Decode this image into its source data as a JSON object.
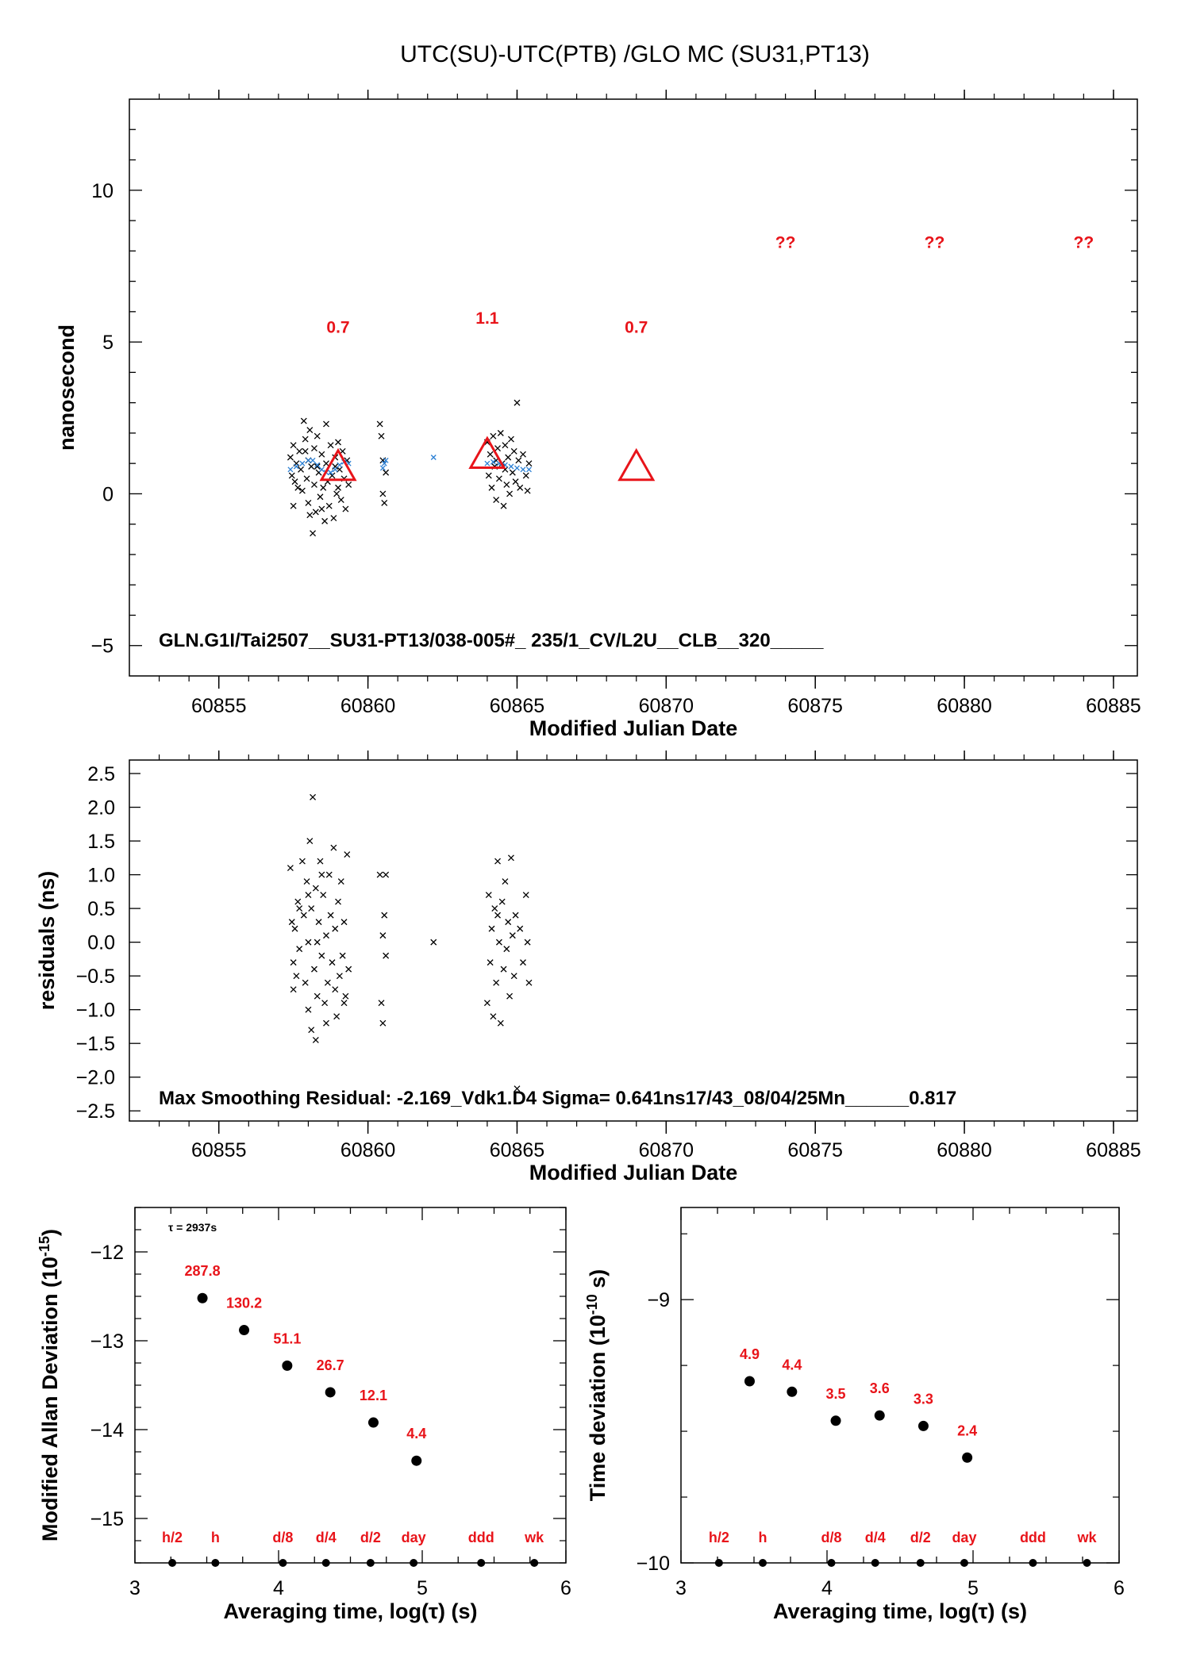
{
  "page": {
    "title": "UTC(SU)-UTC(PTB)  /GLO  MC  (SU31,PT13)"
  },
  "chart_data": [
    {
      "id": "main",
      "type": "scatter",
      "xlabel": "Modified Julian Date",
      "ylabel": "nanosecond",
      "xlim": [
        60852,
        60885.8
      ],
      "ylim": [
        -6,
        13
      ],
      "xticks": [
        60855,
        60860,
        60865,
        60870,
        60875,
        60880,
        60885
      ],
      "yticks": [
        -5,
        0,
        5,
        10
      ],
      "info": "GLN.G1I/Tai2507__SU31-PT13/038-005#_  235/1_CV/L2U__CLB__320_____",
      "series": [
        {
          "kind": "raw",
          "color": "#000000",
          "marker": "x",
          "points": [
            [
              60857.4,
              1.2
            ],
            [
              60857.45,
              0.6
            ],
            [
              60857.5,
              1.6
            ],
            [
              60857.5,
              -0.4
            ],
            [
              60857.55,
              0.4
            ],
            [
              60857.6,
              1.0
            ],
            [
              60857.65,
              0.2
            ],
            [
              60857.7,
              1.4
            ],
            [
              60857.75,
              0.8
            ],
            [
              60857.8,
              0.1
            ],
            [
              60857.85,
              2.4
            ],
            [
              60857.9,
              1.8
            ],
            [
              60857.95,
              0.5
            ],
            [
              60858.0,
              1.1
            ],
            [
              60858.0,
              -0.3
            ],
            [
              60858.05,
              2.1
            ],
            [
              60858.1,
              0.9
            ],
            [
              60858.15,
              -1.3
            ],
            [
              60858.2,
              1.5
            ],
            [
              60858.2,
              0.3
            ],
            [
              60858.25,
              -0.6
            ],
            [
              60858.3,
              1.9
            ],
            [
              60858.35,
              0.7
            ],
            [
              60858.4,
              -0.1
            ],
            [
              60858.45,
              1.3
            ],
            [
              60858.5,
              0.2
            ],
            [
              60858.55,
              -0.9
            ],
            [
              60858.6,
              1.0
            ],
            [
              60858.65,
              0.4
            ],
            [
              60858.7,
              -0.4
            ],
            [
              60858.75,
              1.6
            ],
            [
              60858.8,
              0.6
            ],
            [
              60858.85,
              -0.8
            ],
            [
              60858.9,
              1.2
            ],
            [
              60858.95,
              0.0
            ],
            [
              60859.0,
              1.7
            ],
            [
              60859.05,
              0.8
            ],
            [
              60859.1,
              -0.2
            ],
            [
              60859.15,
              1.4
            ],
            [
              60859.2,
              0.5
            ],
            [
              60859.25,
              -0.5
            ],
            [
              60859.3,
              1.1
            ],
            [
              60859.35,
              0.3
            ],
            [
              60858.05,
              -0.7
            ],
            [
              60858.6,
              2.3
            ],
            [
              60858.3,
              0.9
            ],
            [
              60857.9,
              1.4
            ],
            [
              60859.0,
              0.2
            ],
            [
              60858.45,
              -0.5
            ],
            [
              60858.9,
              0.9
            ],
            [
              60860.4,
              2.3
            ],
            [
              60860.45,
              1.9
            ],
            [
              60860.5,
              1.1
            ],
            [
              60860.5,
              0.0
            ],
            [
              60860.55,
              -0.3
            ],
            [
              60860.6,
              0.7
            ],
            [
              60864.0,
              1.7
            ],
            [
              60864.05,
              0.6
            ],
            [
              60864.1,
              1.3
            ],
            [
              60864.15,
              0.2
            ],
            [
              60864.2,
              1.9
            ],
            [
              60864.25,
              0.9
            ],
            [
              60864.3,
              -0.2
            ],
            [
              60864.35,
              1.5
            ],
            [
              60864.4,
              0.5
            ],
            [
              60864.45,
              2.0
            ],
            [
              60864.5,
              1.0
            ],
            [
              60864.55,
              -0.4
            ],
            [
              60864.6,
              1.6
            ],
            [
              60864.65,
              0.3
            ],
            [
              60864.7,
              1.2
            ],
            [
              60864.75,
              0.0
            ],
            [
              60864.8,
              1.8
            ],
            [
              60864.85,
              0.7
            ],
            [
              60864.9,
              1.4
            ],
            [
              60864.95,
              0.4
            ],
            [
              60865.0,
              3.0
            ],
            [
              60865.05,
              1.1
            ],
            [
              60865.1,
              0.2
            ],
            [
              60865.2,
              1.3
            ],
            [
              60865.3,
              0.6
            ],
            [
              60865.35,
              0.1
            ],
            [
              60865.4,
              1.0
            ],
            [
              60864.3,
              1.1
            ],
            [
              60864.6,
              0.8
            ]
          ]
        },
        {
          "kind": "smoothed",
          "color": "#2a7fd4",
          "marker": "x",
          "points": [
            [
              60857.4,
              0.8
            ],
            [
              60857.6,
              0.9
            ],
            [
              60857.8,
              1.0
            ],
            [
              60858.0,
              1.1
            ],
            [
              60858.15,
              1.1
            ],
            [
              60858.3,
              0.95
            ],
            [
              60858.45,
              0.8
            ],
            [
              60858.6,
              0.7
            ],
            [
              60858.75,
              0.7
            ],
            [
              60858.9,
              0.8
            ],
            [
              60859.05,
              0.95
            ],
            [
              60859.2,
              1.05
            ],
            [
              60859.35,
              1.0
            ],
            [
              60860.5,
              0.85
            ],
            [
              60860.55,
              1.0
            ],
            [
              60860.6,
              1.1
            ],
            [
              60862.2,
              1.2
            ],
            [
              60864.0,
              1.0
            ],
            [
              60864.2,
              1.05
            ],
            [
              60864.4,
              1.0
            ],
            [
              60864.6,
              0.95
            ],
            [
              60864.8,
              0.9
            ],
            [
              60865.0,
              0.85
            ],
            [
              60865.2,
              0.8
            ],
            [
              60865.4,
              0.8
            ]
          ]
        }
      ],
      "triangles": [
        {
          "x": 60859.0,
          "y": 0.8
        },
        {
          "x": 60864.0,
          "y": 1.2
        },
        {
          "x": 60869.0,
          "y": 0.8
        }
      ],
      "annotations": [
        {
          "x": 60859.0,
          "y": 5.3,
          "text": "0.7"
        },
        {
          "x": 60864.0,
          "y": 5.6,
          "text": "1.1"
        },
        {
          "x": 60869.0,
          "y": 5.3,
          "text": "0.7"
        },
        {
          "x": 60874.0,
          "y": 8.1,
          "text": "??"
        },
        {
          "x": 60879.0,
          "y": 8.1,
          "text": "??"
        },
        {
          "x": 60884.0,
          "y": 8.1,
          "text": "??"
        }
      ]
    },
    {
      "id": "residuals",
      "type": "scatter",
      "xlabel": "Modified Julian Date",
      "ylabel": "residuals (ns)",
      "xlim": [
        60852,
        60885.8
      ],
      "ylim": [
        -2.65,
        2.7
      ],
      "xticks": [
        60855,
        60860,
        60865,
        60870,
        60875,
        60880,
        60885
      ],
      "yticks": [
        "2.5",
        "2.0",
        "1.5",
        "1.0",
        "0.5",
        "0.0",
        "−0.5",
        "−1.0",
        "−1.5",
        "−2.0",
        "−2.5"
      ],
      "ytick_values": [
        2.5,
        2.0,
        1.5,
        1.0,
        0.5,
        0.0,
        -0.5,
        -1.0,
        -1.5,
        -2.0,
        -2.5
      ],
      "info": "Max Smoothing Residual: -2.169_Vdk1.D4  Sigma= 0.641ns17/43_08/04/25Mn______0.817",
      "points": [
        [
          60857.4,
          1.1
        ],
        [
          60857.45,
          0.3
        ],
        [
          60857.5,
          -0.3
        ],
        [
          60857.5,
          -0.7
        ],
        [
          60857.55,
          0.2
        ],
        [
          60857.6,
          -0.5
        ],
        [
          60857.65,
          0.6
        ],
        [
          60857.7,
          -0.1
        ],
        [
          60857.8,
          1.2
        ],
        [
          60857.85,
          0.4
        ],
        [
          60857.9,
          -0.6
        ],
        [
          60857.95,
          0.9
        ],
        [
          60858.0,
          -1.0
        ],
        [
          60858.0,
          0.0
        ],
        [
          60858.05,
          1.5
        ],
        [
          60858.1,
          -1.3
        ],
        [
          60858.1,
          0.5
        ],
        [
          60858.15,
          2.15
        ],
        [
          60858.2,
          -0.4
        ],
        [
          60858.25,
          -1.45
        ],
        [
          60858.25,
          0.8
        ],
        [
          60858.3,
          -0.8
        ],
        [
          60858.35,
          0.3
        ],
        [
          60858.4,
          1.2
        ],
        [
          60858.45,
          -0.2
        ],
        [
          60858.5,
          0.7
        ],
        [
          60858.55,
          -0.9
        ],
        [
          60858.6,
          0.1
        ],
        [
          60858.65,
          -0.6
        ],
        [
          60858.7,
          1.0
        ],
        [
          60858.75,
          0.4
        ],
        [
          60858.8,
          -0.3
        ],
        [
          60858.85,
          1.4
        ],
        [
          60858.9,
          0.2
        ],
        [
          60858.95,
          -1.1
        ],
        [
          60859.0,
          0.6
        ],
        [
          60859.05,
          -0.5
        ],
        [
          60859.1,
          0.9
        ],
        [
          60859.15,
          -0.2
        ],
        [
          60859.2,
          0.3
        ],
        [
          60859.25,
          -0.8
        ],
        [
          60859.3,
          1.3
        ],
        [
          60859.35,
          -0.4
        ],
        [
          60858.3,
          0.0
        ],
        [
          60858.6,
          -1.2
        ],
        [
          60858.0,
          0.7
        ],
        [
          60858.9,
          -0.7
        ],
        [
          60859.2,
          -0.9
        ],
        [
          60857.7,
          0.5
        ],
        [
          60858.45,
          1.0
        ],
        [
          60860.4,
          1.0
        ],
        [
          60860.45,
          -0.9
        ],
        [
          60860.5,
          0.1
        ],
        [
          60860.5,
          -1.2
        ],
        [
          60860.55,
          0.4
        ],
        [
          60860.6,
          -0.2
        ],
        [
          60860.6,
          1.0
        ],
        [
          60862.2,
          0.0
        ],
        [
          60864.0,
          -0.9
        ],
        [
          60864.05,
          0.7
        ],
        [
          60864.1,
          -0.3
        ],
        [
          60864.15,
          0.2
        ],
        [
          60864.2,
          -1.1
        ],
        [
          60864.25,
          0.5
        ],
        [
          60864.3,
          -0.6
        ],
        [
          60864.35,
          1.2
        ],
        [
          60864.4,
          0.0
        ],
        [
          60864.45,
          -1.2
        ],
        [
          60864.5,
          0.6
        ],
        [
          60864.55,
          -0.4
        ],
        [
          60864.6,
          0.9
        ],
        [
          60864.65,
          -0.1
        ],
        [
          60864.7,
          0.3
        ],
        [
          60864.75,
          -0.8
        ],
        [
          60864.8,
          1.25
        ],
        [
          60864.85,
          0.1
        ],
        [
          60864.9,
          -0.5
        ],
        [
          60864.95,
          0.4
        ],
        [
          60865.0,
          -2.17
        ],
        [
          60865.1,
          0.2
        ],
        [
          60865.2,
          -0.3
        ],
        [
          60865.3,
          0.7
        ],
        [
          60865.35,
          0.0
        ],
        [
          60865.4,
          -0.6
        ],
        [
          60864.35,
          0.4
        ]
      ]
    },
    {
      "id": "mdev",
      "type": "scatter",
      "xlabel": "Averaging time, log(τ) (s)",
      "ylabel": "Modified Allan Deviation (10",
      "ylabel_sup": "-15",
      "ylabel_tail": ")",
      "xlim": [
        3,
        6
      ],
      "ylim": [
        -15.5,
        -11.5
      ],
      "xticks": [
        3,
        4,
        5,
        6
      ],
      "yticks": [
        "−12",
        "−13",
        "−14",
        "−15"
      ],
      "ytick_values": [
        -12,
        -13,
        -14,
        -15
      ],
      "tau_note": "τ = 2937s",
      "points": [
        {
          "x": 3.47,
          "y": -12.52,
          "label": "287.8"
        },
        {
          "x": 3.76,
          "y": -12.88,
          "label": "130.2"
        },
        {
          "x": 4.06,
          "y": -13.28,
          "label": "51.1"
        },
        {
          "x": 4.36,
          "y": -13.58,
          "label": "26.7"
        },
        {
          "x": 4.66,
          "y": -13.92,
          "label": "12.1"
        },
        {
          "x": 4.96,
          "y": -14.35,
          "label": "4.4"
        }
      ],
      "markers": [
        {
          "x": 3.26,
          "label": "h/2"
        },
        {
          "x": 3.56,
          "label": "h"
        },
        {
          "x": 4.03,
          "label": "d/8"
        },
        {
          "x": 4.33,
          "label": "d/4"
        },
        {
          "x": 4.64,
          "label": "d/2"
        },
        {
          "x": 4.94,
          "label": "day"
        },
        {
          "x": 5.41,
          "label": "ddd"
        },
        {
          "x": 5.78,
          "label": "wk"
        }
      ]
    },
    {
      "id": "tdev",
      "type": "scatter",
      "xlabel": "Averaging time, log(τ) (s)",
      "ylabel": "Time deviation (10",
      "ylabel_sup": "-10",
      "ylabel_tail": " s)",
      "xlim": [
        3,
        6
      ],
      "ylim": [
        -10,
        -8.65
      ],
      "xticks": [
        3,
        4,
        5,
        6
      ],
      "yticks": [
        "−9",
        "−10"
      ],
      "ytick_values": [
        -9,
        -10
      ],
      "points": [
        {
          "x": 3.47,
          "y": -9.31,
          "label": "4.9"
        },
        {
          "x": 3.76,
          "y": -9.35,
          "label": "4.4"
        },
        {
          "x": 4.06,
          "y": -9.46,
          "label": "3.5"
        },
        {
          "x": 4.36,
          "y": -9.44,
          "label": "3.6"
        },
        {
          "x": 4.66,
          "y": -9.48,
          "label": "3.3"
        },
        {
          "x": 4.96,
          "y": -9.6,
          "label": "2.4"
        }
      ],
      "markers": [
        {
          "x": 3.26,
          "label": "h/2"
        },
        {
          "x": 3.56,
          "label": "h"
        },
        {
          "x": 4.03,
          "label": "d/8"
        },
        {
          "x": 4.33,
          "label": "d/4"
        },
        {
          "x": 4.64,
          "label": "d/2"
        },
        {
          "x": 4.94,
          "label": "day"
        },
        {
          "x": 5.41,
          "label": "ddd"
        },
        {
          "x": 5.78,
          "label": "wk"
        }
      ]
    }
  ]
}
